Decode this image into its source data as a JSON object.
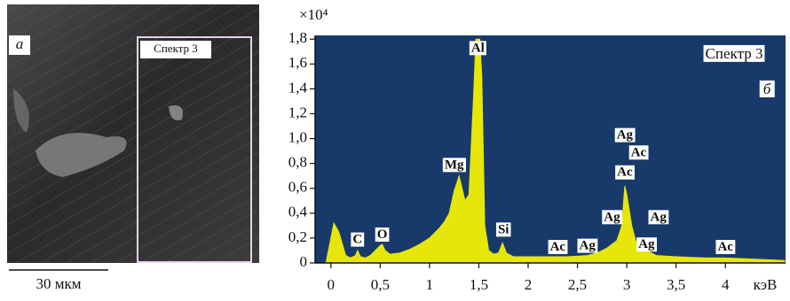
{
  "image": {
    "panel_label": "а",
    "region_label": "Спектр 3",
    "scale_bar": "30 мкм"
  },
  "chart_data": {
    "type": "area",
    "panel_label": "б",
    "spectrum_label": "Спектр 3",
    "ylabel": "×10⁴",
    "xlabel": "кэВ",
    "background": "#173a6b",
    "color": "#e6e60a",
    "x": [
      -0.05,
      0,
      0.03,
      0.08,
      0.15,
      0.2,
      0.25,
      0.27,
      0.3,
      0.35,
      0.4,
      0.45,
      0.5,
      0.52,
      0.55,
      0.6,
      0.7,
      0.8,
      0.9,
      1.0,
      1.1,
      1.15,
      1.2,
      1.25,
      1.28,
      1.3,
      1.33,
      1.36,
      1.4,
      1.45,
      1.47,
      1.49,
      1.51,
      1.53,
      1.56,
      1.6,
      1.65,
      1.7,
      1.74,
      1.78,
      1.85,
      2.0,
      2.2,
      2.4,
      2.6,
      2.7,
      2.8,
      2.9,
      2.95,
      2.98,
      3.0,
      3.05,
      3.1,
      3.15,
      3.2,
      3.3,
      3.5,
      3.8,
      4.0,
      4.3,
      4.6
    ],
    "values": [
      0,
      0.2,
      0.32,
      0.25,
      0.06,
      0.04,
      0.06,
      0.1,
      0.05,
      0.04,
      0.06,
      0.1,
      0.14,
      0.15,
      0.1,
      0.07,
      0.08,
      0.11,
      0.15,
      0.2,
      0.28,
      0.33,
      0.4,
      0.58,
      0.65,
      0.7,
      0.6,
      0.5,
      0.55,
      1.4,
      1.8,
      1.8,
      1.8,
      1.5,
      0.3,
      0.1,
      0.07,
      0.08,
      0.16,
      0.08,
      0.05,
      0.05,
      0.05,
      0.05,
      0.06,
      0.08,
      0.12,
      0.18,
      0.3,
      0.62,
      0.55,
      0.3,
      0.15,
      0.2,
      0.1,
      0.06,
      0.05,
      0.04,
      0.04,
      0.03,
      0.02
    ],
    "xlim": [
      -0.16,
      4.61
    ],
    "ylim": [
      0,
      1.83
    ],
    "xticks": [
      0,
      {
        "value": 0.5,
        "label": "0,5"
      },
      1,
      {
        "value": 1.5,
        "label": "1,5"
      },
      2,
      {
        "value": 2.5,
        "label": "2,5"
      },
      3,
      {
        "value": 3.5,
        "label": "3,5"
      },
      4
    ],
    "yticks": [
      0,
      {
        "value": 0.2,
        "label": "0,2"
      },
      {
        "value": 0.4,
        "label": "0,4"
      },
      {
        "value": 0.6,
        "label": "0,6"
      },
      {
        "value": 0.8,
        "label": "0,8"
      },
      {
        "value": 1.0,
        "label": "1,0"
      },
      {
        "value": 1.2,
        "label": "1,2"
      },
      {
        "value": 1.4,
        "label": "1,4"
      },
      {
        "value": 1.6,
        "label": "1,6"
      },
      {
        "value": 1.8,
        "label": "1,8"
      }
    ],
    "annotations": [
      {
        "text": "C",
        "x": 0.27,
        "y": 0.12
      },
      {
        "text": "O",
        "x": 0.52,
        "y": 0.16
      },
      {
        "text": "Mg",
        "x": 1.25,
        "y": 0.72
      },
      {
        "text": "Al",
        "x": 1.49,
        "y": 1.66
      },
      {
        "text": "Si",
        "x": 1.75,
        "y": 0.2
      },
      {
        "text": "Ac",
        "x": 2.3,
        "y": 0.06
      },
      {
        "text": "Ag",
        "x": 2.6,
        "y": 0.07
      },
      {
        "text": "Ag",
        "x": 2.85,
        "y": 0.3
      },
      {
        "text": "Ac",
        "x": 2.98,
        "y": 0.66
      },
      {
        "text": "Ag",
        "x": 2.98,
        "y": 0.96
      },
      {
        "text": "Ac",
        "x": 3.12,
        "y": 0.82
      },
      {
        "text": "Ag",
        "x": 3.32,
        "y": 0.3
      },
      {
        "text": "Ag",
        "x": 3.2,
        "y": 0.08
      },
      {
        "text": "Ac",
        "x": 4.0,
        "y": 0.06
      }
    ]
  }
}
